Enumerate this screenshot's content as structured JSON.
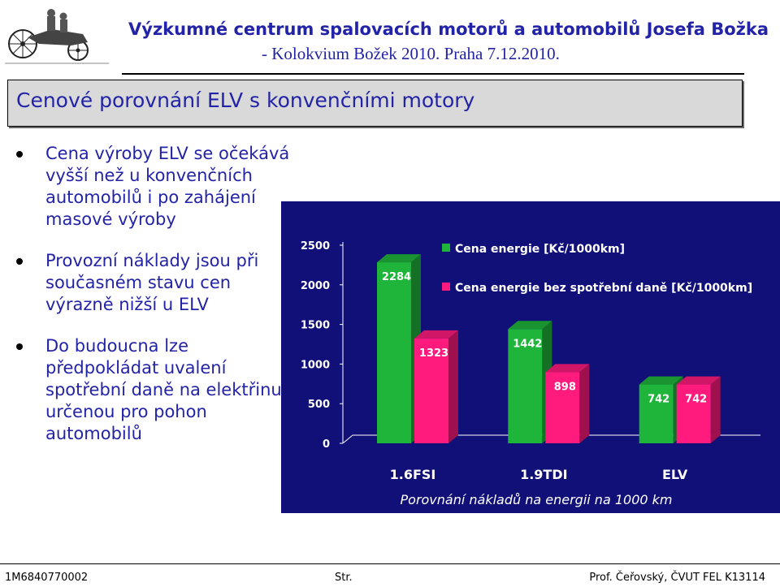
{
  "header": {
    "title": "Výzkumné centrum spalovacích motorů a automobilů Josefa Božka",
    "subtitle": "- Kolokvium Božek 2010. Praha 7.12.2010."
  },
  "slide": {
    "title": "Cenové porovnání ELV s konvenčními motory",
    "bullets": [
      "Cena výroby ELV se očekává\nvyšší než u konvenčních\nautomobilů i po zahájení\nmasové výroby",
      "Provozní náklady jsou při\nsoučasném stavu cen\nvýrazně nižší u ELV",
      "Do budoucna lze\npředpokládat uvalení\nspotřební daně na elektřinu\nurčenou pro pohon\nautomobilů"
    ]
  },
  "chart_data": {
    "type": "bar",
    "categories": [
      "1.6FSI",
      "1.9TDI",
      "ELV"
    ],
    "series": [
      {
        "name": "Cena energie [Kč/1000km]",
        "values": [
          2284,
          1442,
          742
        ],
        "color": "#1fb53a"
      },
      {
        "name": "Cena energie bez spotřební daně [Kč/1000km]",
        "values": [
          1323,
          898,
          742
        ],
        "color": "#ff1a7e"
      }
    ],
    "yticks": [
      0,
      500,
      1000,
      1500,
      2000,
      2500
    ],
    "ylim": [
      0,
      2500
    ],
    "caption": "Porovnání nákladů na energii na 1000 km",
    "legend": "top-right",
    "grid": false,
    "background": "#111079"
  },
  "footer": {
    "left": "1M6840770002",
    "center": "Str.",
    "right": "Prof. Čeřovský, ČVUT FEL K13114"
  }
}
